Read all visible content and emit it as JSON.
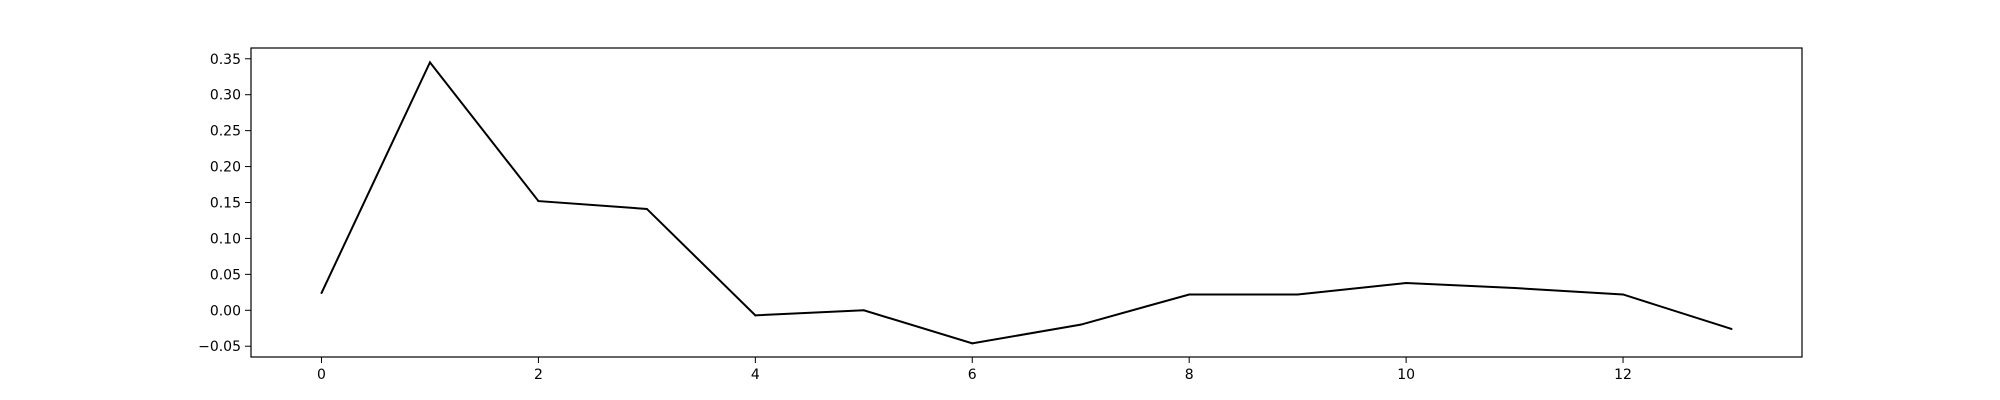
{
  "chart_data": {
    "type": "line",
    "title": "",
    "xlabel": "",
    "ylabel": "",
    "x": [
      0,
      1,
      2,
      3,
      4,
      5,
      6,
      7,
      8,
      9,
      10,
      11,
      12,
      13
    ],
    "series": [
      {
        "values": [
          0.024,
          0.345,
          0.152,
          0.141,
          -0.007,
          0.0,
          -0.046,
          -0.02,
          0.022,
          0.022,
          0.038,
          0.031,
          0.022,
          -0.026
        ],
        "color": "#000000"
      }
    ],
    "xlim": [
      -0.65,
      13.65
    ],
    "ylim": [
      -0.065,
      0.365
    ],
    "xticks": [
      0,
      2,
      4,
      6,
      8,
      10,
      12
    ],
    "yticks": [
      -0.05,
      0.0,
      0.05,
      0.1,
      0.15,
      0.2,
      0.25,
      0.3,
      0.35
    ],
    "xtick_labels": [
      "0",
      "2",
      "4",
      "6",
      "8",
      "10",
      "12"
    ],
    "ytick_labels": [
      "−0.05",
      "0.00",
      "0.05",
      "0.10",
      "0.15",
      "0.20",
      "0.25",
      "0.30",
      "0.35"
    ],
    "grid": false,
    "legend": "none"
  }
}
